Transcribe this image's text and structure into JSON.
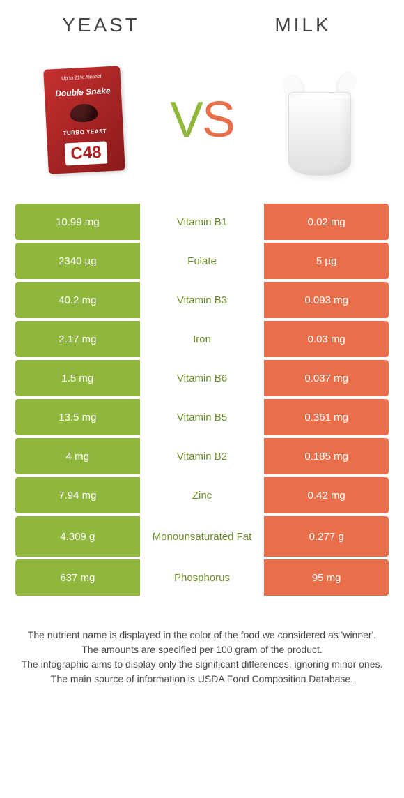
{
  "colors": {
    "green": "#8fb73e",
    "orange": "#e86f4a",
    "green_text": "#6a8f2a",
    "orange_text": "#d85a36",
    "background": "#ffffff"
  },
  "header": {
    "left": "YEAST",
    "right": "MILK"
  },
  "vs": {
    "v": "V",
    "s": "S"
  },
  "yeast_package": {
    "top_text": "Up to 21% Alcohol!",
    "brand": "Double Snake",
    "subtitle": "TURBO YEAST",
    "code": "C48"
  },
  "table": {
    "columns": [
      "left_value",
      "nutrient",
      "right_value"
    ],
    "left_bg": "green",
    "right_bg": "orange",
    "rows": [
      {
        "left": "10.99 mg",
        "mid": "Vitamin B1",
        "winner": "green",
        "right": "0.02 mg"
      },
      {
        "left": "2340 µg",
        "mid": "Folate",
        "winner": "green",
        "right": "5 µg"
      },
      {
        "left": "40.2 mg",
        "mid": "Vitamin B3",
        "winner": "green",
        "right": "0.093 mg"
      },
      {
        "left": "2.17 mg",
        "mid": "Iron",
        "winner": "green",
        "right": "0.03 mg"
      },
      {
        "left": "1.5 mg",
        "mid": "Vitamin B6",
        "winner": "green",
        "right": "0.037 mg"
      },
      {
        "left": "13.5 mg",
        "mid": "Vitamin B5",
        "winner": "green",
        "right": "0.361 mg"
      },
      {
        "left": "4 mg",
        "mid": "Vitamin B2",
        "winner": "green",
        "right": "0.185 mg"
      },
      {
        "left": "7.94 mg",
        "mid": "Zinc",
        "winner": "green",
        "right": "0.42 mg"
      },
      {
        "left": "4.309 g",
        "mid": "Monounsaturated Fat",
        "winner": "green",
        "right": "0.277 g",
        "tall": true
      },
      {
        "left": "637 mg",
        "mid": "Phosphorus",
        "winner": "green",
        "right": "95 mg"
      }
    ]
  },
  "footnote": {
    "line1": "The nutrient name is displayed in the color of the food we considered as 'winner'.",
    "line2": "The amounts are specified per 100 gram of the product.",
    "line3": "The infographic aims to display only the significant differences, ignoring minor ones.",
    "line4": "The main source of information is USDA Food Composition Database."
  }
}
